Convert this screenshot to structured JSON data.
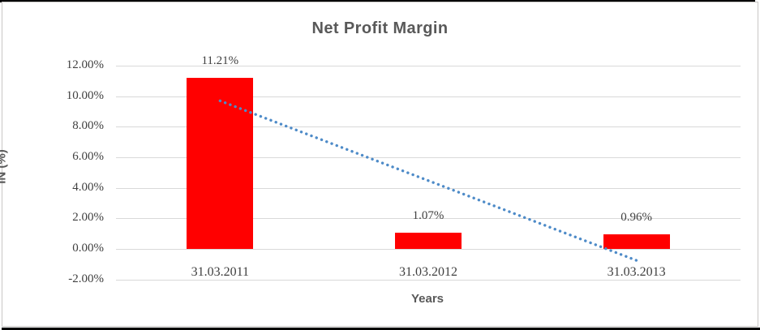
{
  "chart_data": {
    "type": "bar",
    "title": "Net Profit Margin",
    "xlabel": "Years",
    "ylabel": "IN (%)",
    "categories": [
      "31.03.2011",
      "31.03.2012",
      "31.03.2013"
    ],
    "values": [
      11.21,
      1.07,
      0.96
    ],
    "data_labels": [
      "11.21%",
      "1.07%",
      "0.96%"
    ],
    "ylim": [
      -2,
      12
    ],
    "ytick_step": 2,
    "yticks": [
      {
        "value": 12,
        "label": "12.00%"
      },
      {
        "value": 10,
        "label": "10.00%"
      },
      {
        "value": 8,
        "label": "8.00%"
      },
      {
        "value": 6,
        "label": "6.00%"
      },
      {
        "value": 4,
        "label": "4.00%"
      },
      {
        "value": 2,
        "label": "2.00%"
      },
      {
        "value": 0,
        "label": "0.00%"
      },
      {
        "value": -2,
        "label": "-2.00%"
      }
    ],
    "grid": true,
    "legend": "none",
    "bar_color": "#ff0000",
    "gridline_color": "#d9d9d9",
    "title_color": "#595959",
    "tick_color": "#404040",
    "trendline": {
      "style": "dotted",
      "color": "#4e8bc8",
      "start_category_index": 0,
      "end_category_index": 2,
      "start_value": 9.7,
      "end_value": -0.75
    }
  }
}
